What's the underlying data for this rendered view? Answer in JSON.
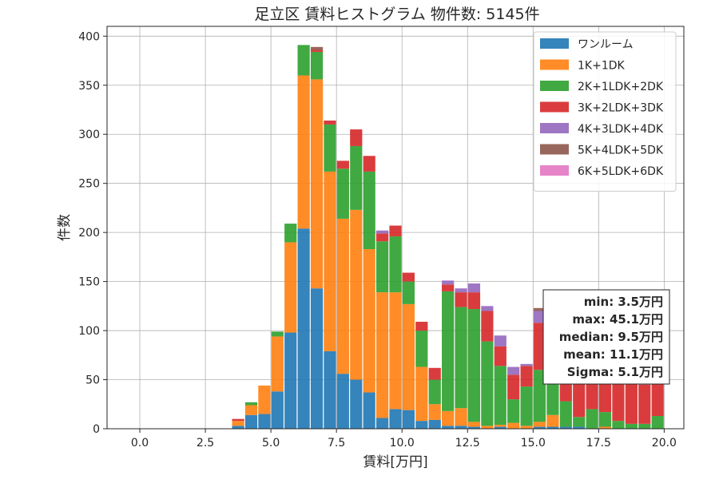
{
  "chart_data": {
    "type": "bar",
    "stacked": true,
    "title": "足立区 賃料ヒストグラム  物件数: 5145件",
    "xlabel": "賃料[万円]",
    "ylabel": "件数",
    "xlim": [
      -1.25,
      20.75
    ],
    "ylim": [
      0,
      410
    ],
    "xticks": [
      0,
      2.5,
      5,
      7.5,
      10,
      12.5,
      15,
      17.5,
      20
    ],
    "xtick_labels": [
      "0.0",
      "2.5",
      "5.0",
      "7.5",
      "10.0",
      "12.5",
      "15.0",
      "17.5",
      "20.0"
    ],
    "yticks": [
      0,
      50,
      100,
      150,
      200,
      250,
      300,
      350,
      400
    ],
    "ytick_labels": [
      "0",
      "50",
      "100",
      "150",
      "200",
      "250",
      "300",
      "350",
      "400"
    ],
    "grid": true,
    "legend_position": "top-right",
    "bin_width": 0.5,
    "x": [
      3.5,
      4.0,
      4.5,
      5.0,
      5.5,
      6.0,
      6.5,
      7.0,
      7.5,
      8.0,
      8.5,
      9.0,
      9.5,
      10.0,
      10.5,
      11.0,
      11.5,
      12.0,
      12.5,
      13.0,
      13.5,
      14.0,
      14.5,
      15.0,
      15.5,
      16.0,
      16.5,
      17.0,
      17.5,
      18.0,
      18.5,
      19.0,
      19.5
    ],
    "series": [
      {
        "name": "ワンルーム",
        "color": "#1f77b4",
        "values": [
          3,
          14,
          15,
          38,
          98,
          204,
          143,
          79,
          56,
          50,
          37,
          11,
          20,
          19,
          8,
          9,
          3,
          3,
          2,
          0,
          2,
          0,
          0,
          2,
          2,
          2,
          2,
          0,
          0,
          0,
          0,
          0,
          0
        ]
      },
      {
        "name": "1K+1DK",
        "color": "#ff7f0e",
        "values": [
          5,
          10,
          29,
          56,
          92,
          156,
          213,
          183,
          158,
          173,
          146,
          128,
          119,
          108,
          55,
          16,
          15,
          18,
          5,
          3,
          2,
          6,
          3,
          5,
          12,
          0,
          0,
          0,
          2,
          0,
          0,
          0,
          0
        ]
      },
      {
        "name": "2K+1LDK+2DK",
        "color": "#2ca02c",
        "values": [
          0,
          3,
          0,
          5,
          19,
          31,
          28,
          48,
          51,
          65,
          79,
          52,
          57,
          23,
          37,
          25,
          122,
          103,
          115,
          86,
          60,
          24,
          40,
          53,
          47,
          26,
          10,
          20,
          15,
          8,
          5,
          5,
          13
        ]
      },
      {
        "name": "3K+2LDK+3DK",
        "color": "#d62728",
        "values": [
          2,
          0,
          0,
          0,
          0,
          0,
          2,
          4,
          8,
          17,
          16,
          8,
          11,
          9,
          9,
          12,
          7,
          15,
          17,
          31,
          20,
          25,
          21,
          48,
          37,
          45,
          52,
          52,
          54,
          46,
          44,
          40,
          36
        ]
      },
      {
        "name": "4K+3LDK+4DK",
        "color": "#9467bd",
        "values": [
          0,
          0,
          0,
          0,
          0,
          0,
          0,
          0,
          0,
          0,
          0,
          3,
          0,
          0,
          0,
          0,
          4,
          4,
          9,
          5,
          11,
          8,
          2,
          12,
          6,
          10,
          10,
          6,
          8,
          9,
          11,
          14,
          6
        ]
      },
      {
        "name": "5K+4LDK+5DK",
        "color": "#8c564b",
        "values": [
          0,
          0,
          0,
          0,
          0,
          0,
          3,
          0,
          0,
          0,
          0,
          0,
          0,
          0,
          0,
          0,
          0,
          0,
          0,
          0,
          0,
          0,
          0,
          3,
          0,
          0,
          0,
          0,
          0,
          0,
          0,
          0,
          0
        ]
      },
      {
        "name": "6K+5LDK+6DK",
        "color": "#e377c2",
        "values": [
          0,
          0,
          0,
          0,
          0,
          0,
          0,
          0,
          0,
          0,
          0,
          0,
          0,
          0,
          0,
          0,
          0,
          0,
          0,
          0,
          0,
          0,
          0,
          0,
          0,
          0,
          0,
          0,
          0,
          0,
          0,
          0,
          0
        ]
      }
    ],
    "annotations": [
      "min: 3.5万円",
      "max: 45.1万円",
      "median: 9.5万円",
      "mean: 11.1万円",
      "Sigma: 5.1万円"
    ]
  }
}
